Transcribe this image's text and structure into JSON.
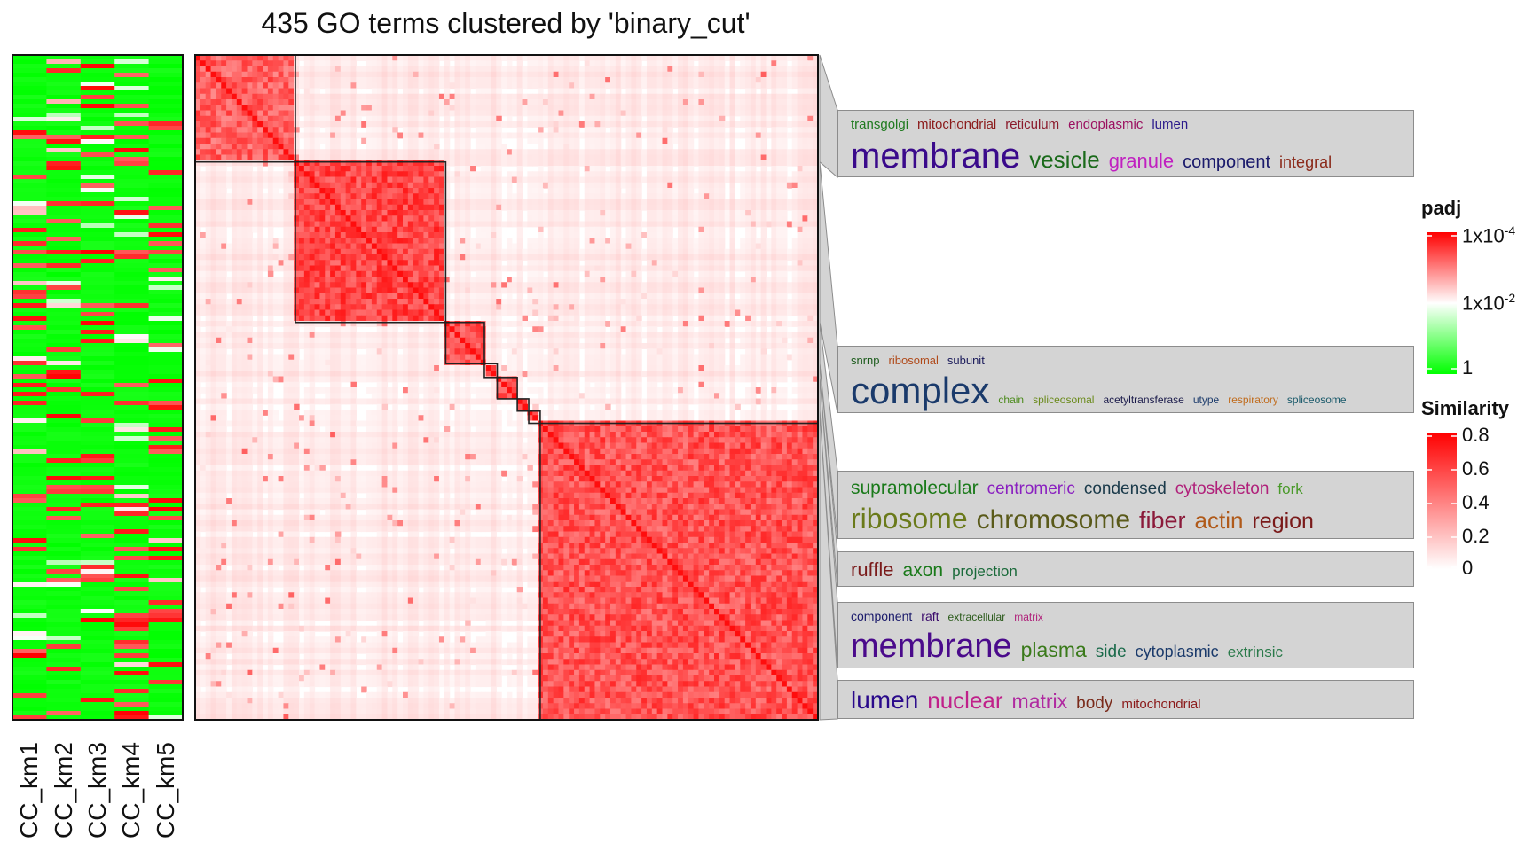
{
  "title": "435 GO terms clustered by 'binary_cut'",
  "heatmap_columns": [
    "CC_km1",
    "CC_km2",
    "CC_km3",
    "CC_km4",
    "CC_km5"
  ],
  "cluster_sizes": [
    70,
    105,
    27,
    9,
    14,
    8,
    8,
    194
  ],
  "word_clouds": [
    {
      "lines": [
        [
          {
            "text": "transgolgi",
            "color": "#1f7a1f",
            "size": 15
          },
          {
            "text": "mitochondrial",
            "color": "#8b1a1a",
            "size": 15
          },
          {
            "text": "reticulum",
            "color": "#8b1a2b",
            "size": 15
          },
          {
            "text": "endoplasmic",
            "color": "#9b1060",
            "size": 15
          },
          {
            "text": "lumen",
            "color": "#2a1a8b",
            "size": 15
          }
        ],
        [
          {
            "text": "membrane",
            "color": "#3a0a8b",
            "size": 40
          },
          {
            "text": "vesicle",
            "color": "#1a6a1a",
            "size": 26
          },
          {
            "text": "granule",
            "color": "#c020c0",
            "size": 22
          },
          {
            "text": "component",
            "color": "#1a1a6b",
            "size": 20
          },
          {
            "text": "integral",
            "color": "#8b2a1a",
            "size": 18
          }
        ]
      ]
    },
    {
      "lines": [
        [
          {
            "text": "snrnp",
            "color": "#1a5a1a",
            "size": 13
          },
          {
            "text": "ribosomal",
            "color": "#b04a1a",
            "size": 13
          },
          {
            "text": "subunit",
            "color": "#1a1a5a",
            "size": 13
          }
        ],
        [
          {
            "text": "complex",
            "color": "#1a3a6b",
            "size": 42
          },
          {
            "text": "chain",
            "color": "#4a8a1a",
            "size": 12
          },
          {
            "text": "spliceosomal",
            "color": "#6a8a1a",
            "size": 12
          },
          {
            "text": "acetyltransferase",
            "color": "#1a1a4a",
            "size": 12
          },
          {
            "text": "utype",
            "color": "#1a3a6b",
            "size": 12
          },
          {
            "text": "respiratory",
            "color": "#c06a1a",
            "size": 12
          },
          {
            "text": "spliceosome",
            "color": "#1a5a6b",
            "size": 12
          }
        ]
      ]
    },
    {
      "lines": [
        [
          {
            "text": "supramolecular",
            "color": "#1a7a1a",
            "size": 21
          },
          {
            "text": "centromeric",
            "color": "#8a20c0",
            "size": 19
          },
          {
            "text": "condensed",
            "color": "#1a3a4a",
            "size": 19
          },
          {
            "text": "cytoskeleton",
            "color": "#b0207a",
            "size": 19
          },
          {
            "text": "fork",
            "color": "#4a9a2a",
            "size": 17
          }
        ],
        [
          {
            "text": "ribosome",
            "color": "#6a7a1a",
            "size": 32
          },
          {
            "text": "chromosome",
            "color": "#5a5a1a",
            "size": 30
          },
          {
            "text": "fiber",
            "color": "#8b1a3a",
            "size": 27
          },
          {
            "text": "actin",
            "color": "#b05a1a",
            "size": 26
          },
          {
            "text": "region",
            "color": "#7a1a1a",
            "size": 25
          }
        ]
      ]
    },
    {
      "lines": [
        [
          {
            "text": "ruffle",
            "color": "#7a1a1a",
            "size": 22
          },
          {
            "text": "axon",
            "color": "#1a7a1a",
            "size": 21
          },
          {
            "text": "projection",
            "color": "#1a6a3a",
            "size": 17
          }
        ]
      ]
    },
    {
      "lines": [
        [
          {
            "text": "component",
            "color": "#1a1a6b",
            "size": 14
          },
          {
            "text": "raft",
            "color": "#3a0a6b",
            "size": 14
          },
          {
            "text": "extracellular",
            "color": "#2a5a1a",
            "size": 12
          },
          {
            "text": "matrix",
            "color": "#b0207a",
            "size": 12
          }
        ],
        [
          {
            "text": "membrane",
            "color": "#4a0a8b",
            "size": 38
          },
          {
            "text": "plasma",
            "color": "#3a7a1a",
            "size": 23
          },
          {
            "text": "side",
            "color": "#1a6a4a",
            "size": 19
          },
          {
            "text": "cytoplasmic",
            "color": "#1a3a6b",
            "size": 18
          },
          {
            "text": "extrinsic",
            "color": "#2a7a4a",
            "size": 17
          }
        ]
      ]
    },
    {
      "lines": [
        [
          {
            "text": "lumen",
            "color": "#2a0a8b",
            "size": 28
          },
          {
            "text": "nuclear",
            "color": "#c0208a",
            "size": 26
          },
          {
            "text": "matrix",
            "color": "#b02aa0",
            "size": 23
          },
          {
            "text": "body",
            "color": "#7a2a1a",
            "size": 19
          },
          {
            "text": "mitochondrial",
            "color": "#8b1a1a",
            "size": 15
          }
        ]
      ]
    }
  ],
  "legend_padj": {
    "title": "padj",
    "ticks": [
      "1x10",
      "1x10",
      "1"
    ],
    "exponents": [
      "-4",
      "-2",
      ""
    ],
    "colors": [
      "#ff0000",
      "#ffffff",
      "#00ff00"
    ]
  },
  "legend_similarity": {
    "title": "Similarity",
    "ticks": [
      "0.8",
      "0.6",
      "0.4",
      "0.2",
      "0"
    ],
    "colors": [
      "#ff0000",
      "#ffffff"
    ]
  },
  "colors": {
    "high": "#ff0000",
    "mid": "#ffffff",
    "low": "#00ff00",
    "box": "#d4d4d4"
  }
}
